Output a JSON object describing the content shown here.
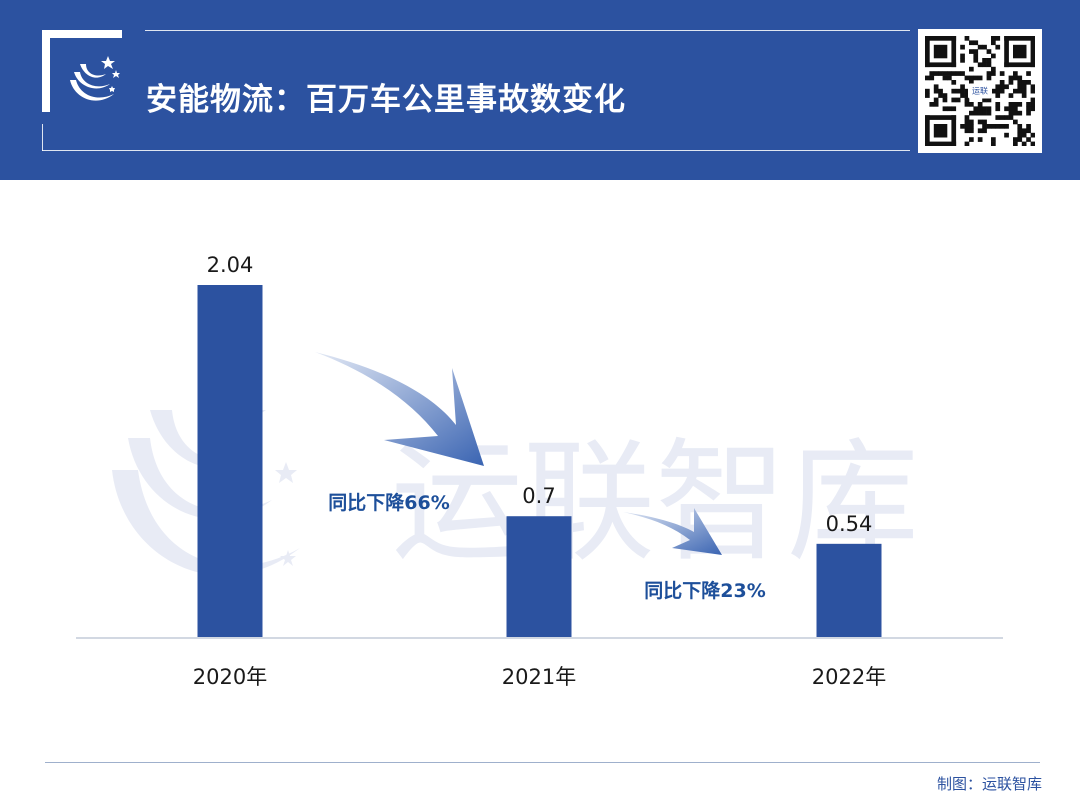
{
  "header": {
    "title": "安能物流：百万车公里事故数变化",
    "qr_center_label": "运联"
  },
  "chart_data": {
    "type": "bar",
    "title": "安能物流：百万车公里事故数变化",
    "categories": [
      "2020年",
      "2021年",
      "2022年"
    ],
    "values": [
      2.04,
      0.7,
      0.54
    ],
    "value_labels": [
      "2.04",
      "0.7",
      "0.54"
    ],
    "ylim": [
      0,
      2.04
    ],
    "grid": false,
    "xlabel": "",
    "ylabel": "",
    "annotations": [
      "同比下降66%",
      "同比下降23%"
    ],
    "colors": {
      "bar": "#2c52a0",
      "annotation": "#1d4f9a",
      "watermark": "#e8ebf5"
    }
  },
  "watermark": {
    "text": "运联智库"
  },
  "footer": {
    "credit": "制图：运联智库"
  }
}
